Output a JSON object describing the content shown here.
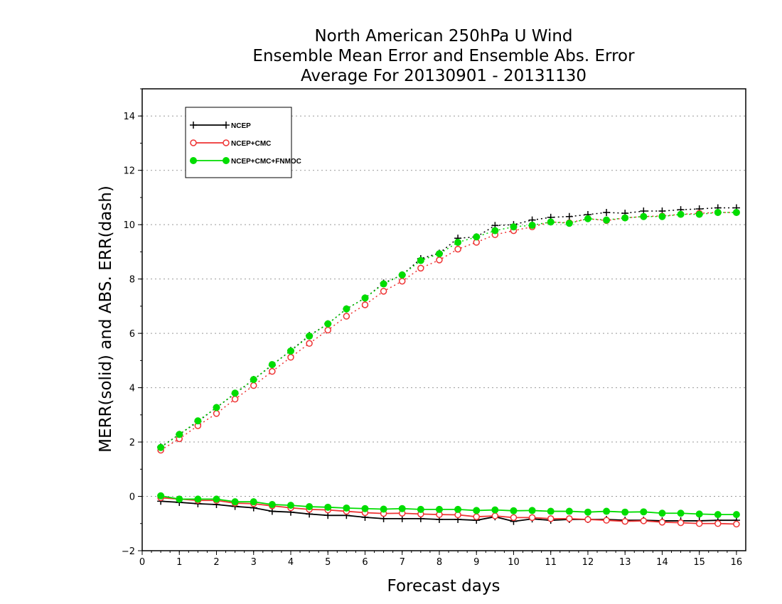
{
  "chart_data": {
    "type": "line",
    "title": [
      "North American 250hPa U Wind",
      "Ensemble Mean Error and Ensemble Abs. Error",
      "Average For 20130901 - 20131130"
    ],
    "xlabel": "Forecast days",
    "ylabel": "MERR(solid) and ABS. ERR(dash)",
    "xlim": [
      0,
      16.25
    ],
    "ylim": [
      -2,
      15
    ],
    "xticks": [
      0,
      1,
      2,
      3,
      4,
      5,
      6,
      7,
      8,
      9,
      10,
      11,
      12,
      13,
      14,
      15,
      16
    ],
    "yticks": [
      -2,
      0,
      2,
      4,
      6,
      8,
      10,
      12,
      14
    ],
    "grid": "horizontal dotted",
    "legend_position": "top-left",
    "x": [
      0.5,
      1,
      1.5,
      2,
      2.5,
      3,
      3.5,
      4,
      4.5,
      5,
      5.5,
      6,
      6.5,
      7,
      7.5,
      8,
      8.5,
      9,
      9.5,
      10,
      10.5,
      11,
      11.5,
      12,
      12.5,
      13,
      13.5,
      14,
      14.5,
      15,
      15.5,
      16
    ],
    "series": [
      {
        "name": "NCEP",
        "color": "#000000",
        "marker": "plus",
        "merr": [
          -0.18,
          -0.22,
          -0.27,
          -0.3,
          -0.37,
          -0.42,
          -0.55,
          -0.58,
          -0.65,
          -0.7,
          -0.7,
          -0.77,
          -0.82,
          -0.82,
          -0.82,
          -0.85,
          -0.85,
          -0.88,
          -0.75,
          -0.92,
          -0.83,
          -0.88,
          -0.85,
          -0.85,
          -0.85,
          -0.88,
          -0.88,
          -0.9,
          -0.9,
          -0.9,
          -0.88,
          -0.88
        ],
        "abserr": [
          1.82,
          2.28,
          2.75,
          3.27,
          3.78,
          4.3,
          4.83,
          5.37,
          5.92,
          6.35,
          6.9,
          7.3,
          7.85,
          8.15,
          8.75,
          8.95,
          9.5,
          9.55,
          9.97,
          10.0,
          10.17,
          10.27,
          10.3,
          10.37,
          10.45,
          10.42,
          10.5,
          10.5,
          10.55,
          10.58,
          10.62,
          10.62
        ]
      },
      {
        "name": "NCEP+CMC",
        "color": "#ee3333",
        "marker": "open-circle",
        "merr": [
          -0.05,
          -0.1,
          -0.15,
          -0.15,
          -0.25,
          -0.27,
          -0.35,
          -0.42,
          -0.48,
          -0.5,
          -0.55,
          -0.6,
          -0.63,
          -0.62,
          -0.65,
          -0.67,
          -0.68,
          -0.75,
          -0.72,
          -0.78,
          -0.78,
          -0.82,
          -0.82,
          -0.85,
          -0.88,
          -0.92,
          -0.9,
          -0.95,
          -0.97,
          -1.0,
          -1.0,
          -1.02
        ],
        "abserr": [
          1.7,
          2.12,
          2.6,
          3.05,
          3.58,
          4.08,
          4.6,
          5.12,
          5.63,
          6.12,
          6.63,
          7.05,
          7.55,
          7.92,
          8.4,
          8.7,
          9.1,
          9.35,
          9.63,
          9.78,
          9.92,
          10.1,
          10.07,
          10.22,
          10.15,
          10.25,
          10.3,
          10.32,
          10.38,
          10.42,
          10.45,
          10.45
        ]
      },
      {
        "name": "NCEP+CMC+FNMOC",
        "color": "#00dd00",
        "marker": "filled-circle",
        "merr": [
          0.02,
          -0.1,
          -0.1,
          -0.1,
          -0.2,
          -0.2,
          -0.3,
          -0.33,
          -0.38,
          -0.4,
          -0.43,
          -0.45,
          -0.47,
          -0.45,
          -0.48,
          -0.48,
          -0.48,
          -0.52,
          -0.5,
          -0.53,
          -0.52,
          -0.55,
          -0.55,
          -0.58,
          -0.55,
          -0.58,
          -0.57,
          -0.62,
          -0.62,
          -0.65,
          -0.67,
          -0.67
        ],
        "abserr": [
          1.8,
          2.28,
          2.78,
          3.27,
          3.8,
          4.3,
          4.85,
          5.35,
          5.9,
          6.35,
          6.9,
          7.3,
          7.82,
          8.15,
          8.68,
          8.93,
          9.35,
          9.55,
          9.78,
          9.92,
          9.98,
          10.1,
          10.05,
          10.22,
          10.17,
          10.25,
          10.3,
          10.3,
          10.38,
          10.38,
          10.45,
          10.45
        ]
      }
    ]
  }
}
